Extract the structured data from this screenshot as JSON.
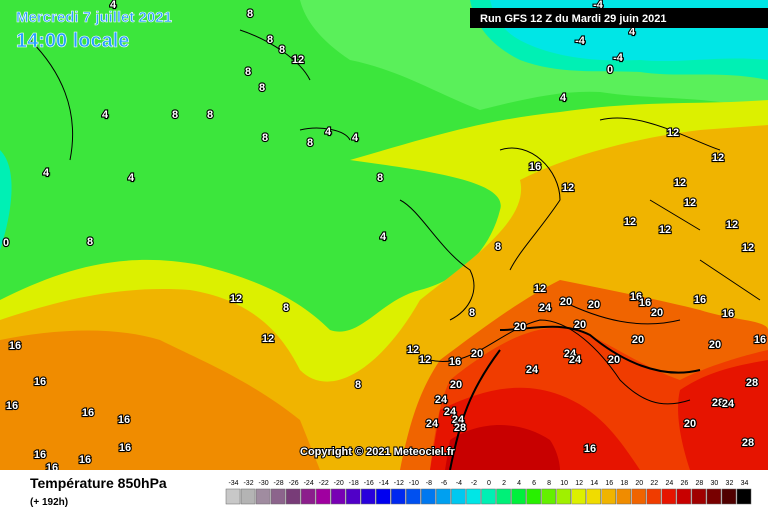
{
  "header": {
    "date": "Mercredi 7 juillet 2021",
    "time": "14:00 locale",
    "run": "Run GFS 12 Z du Mardi 29 juin 2021"
  },
  "copyright": "Copyright © 2021 Meteociel.fr",
  "footer": {
    "title": "Température 850hPa",
    "lead": "(+ 192h)"
  },
  "legend": {
    "ticks": [
      -34,
      -32,
      -30,
      -28,
      -26,
      -24,
      -22,
      -20,
      -18,
      -16,
      -14,
      -12,
      -10,
      -8,
      -6,
      -4,
      -2,
      0,
      2,
      4,
      6,
      8,
      10,
      12,
      14,
      16,
      18,
      20,
      22,
      24,
      26,
      28,
      30,
      32,
      34
    ],
    "colors": [
      "#c8c8c8",
      "#b4b4b4",
      "#a08ca0",
      "#8c648c",
      "#783c78",
      "#8c1e8c",
      "#a000a0",
      "#7800b4",
      "#5000c8",
      "#2800dc",
      "#0000f0",
      "#0028f0",
      "#0050f0",
      "#0078f0",
      "#00a0f0",
      "#00c8f0",
      "#00e6e6",
      "#00f0b4",
      "#00f078",
      "#00f03c",
      "#28f000",
      "#64f000",
      "#a0f000",
      "#dcf000",
      "#f0dc00",
      "#f0b400",
      "#f08c00",
      "#f06400",
      "#f03c00",
      "#e61400",
      "#c80000",
      "#a00000",
      "#780000",
      "#500000",
      "#000000"
    ]
  },
  "contour_labels": [
    4,
    8,
    -4,
    -4,
    4,
    -4,
    0,
    4,
    8,
    8,
    12,
    8,
    8,
    4,
    8,
    8,
    8,
    4,
    8,
    4,
    4,
    4,
    8,
    16,
    12,
    12,
    12,
    12,
    12,
    12,
    12,
    12,
    12,
    4,
    8,
    8,
    12,
    20,
    20,
    16,
    16,
    20,
    16,
    16,
    16,
    12,
    8,
    12,
    8,
    20,
    24,
    20,
    20,
    12,
    12,
    16,
    20,
    16,
    20,
    24,
    24,
    20,
    24,
    28,
    20,
    24,
    24,
    28,
    24,
    8,
    16,
    16,
    16,
    16,
    20,
    24,
    24,
    28,
    28,
    16,
    16,
    16,
    16,
    16,
    0
  ]
}
